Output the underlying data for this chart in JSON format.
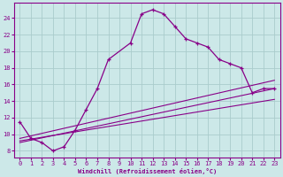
{
  "xlabel": "Windchill (Refroidissement éolien,°C)",
  "bg_color": "#cce8e8",
  "line_color": "#880088",
  "grid_color": "#aacccc",
  "x_ticks": [
    0,
    1,
    2,
    3,
    4,
    5,
    6,
    7,
    8,
    9,
    10,
    11,
    12,
    13,
    14,
    15,
    16,
    17,
    18,
    19,
    20,
    21,
    22,
    23
  ],
  "y_ticks": [
    8,
    10,
    12,
    14,
    16,
    18,
    20,
    22,
    24
  ],
  "ylim": [
    7.2,
    25.8
  ],
  "xlim": [
    -0.5,
    23.5
  ],
  "main_line": {
    "x": [
      0,
      1,
      2,
      3,
      4,
      5,
      6,
      7,
      8,
      10,
      11,
      12,
      13,
      14,
      15,
      16,
      17,
      18,
      19,
      20,
      21,
      22,
      23
    ],
    "y": [
      11.5,
      9.5,
      9.0,
      8.0,
      8.5,
      10.5,
      13.0,
      15.5,
      19.0,
      21.0,
      24.5,
      25.0,
      24.5,
      23.0,
      21.5,
      21.0,
      20.5,
      19.0,
      18.5,
      18.0,
      15.0,
      15.5,
      15.5
    ]
  },
  "line_straight1": {
    "x": [
      0,
      23
    ],
    "y": [
      9.0,
      15.5
    ]
  },
  "line_straight2": {
    "x": [
      0,
      23
    ],
    "y": [
      9.5,
      16.5
    ]
  },
  "line_straight3": {
    "x": [
      0,
      23
    ],
    "y": [
      9.2,
      14.2
    ]
  }
}
